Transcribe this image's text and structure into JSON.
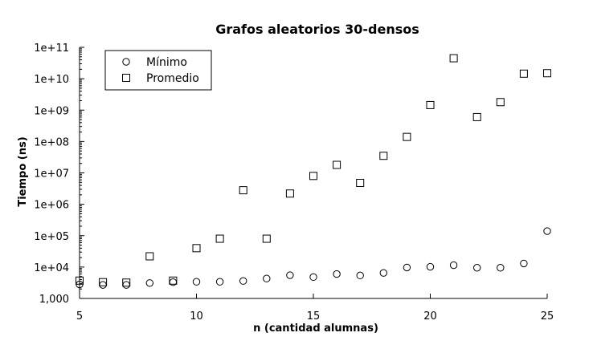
{
  "chart_data": {
    "type": "scatter",
    "title": "Grafos aleatorios 30-densos",
    "xlabel": "n (cantidad alumnas)",
    "ylabel": "Tiempo (ns)",
    "xlim": [
      5,
      25
    ],
    "ylim": [
      1000,
      100000000000
    ],
    "yscale": "log",
    "grid": false,
    "legend_position": "top-left",
    "x_ticks": [
      5,
      10,
      15,
      20,
      25
    ],
    "x_tick_labels": [
      "5",
      "10",
      "15",
      "20",
      "25"
    ],
    "y_ticks": [
      1000,
      10000,
      100000,
      1000000,
      10000000,
      100000000,
      1000000000,
      10000000000,
      100000000000
    ],
    "y_tick_labels": [
      "1,000",
      "1e+04",
      "1e+05",
      "1e+06",
      "1e+07",
      "1e+08",
      "1e+09",
      "1e+10",
      "1e+11"
    ],
    "series": [
      {
        "name": "Mínimo",
        "marker": "circle",
        "color": "#000000",
        "x": [
          5,
          6,
          7,
          8,
          9,
          10,
          11,
          12,
          13,
          14,
          15,
          16,
          17,
          18,
          19,
          20,
          21,
          22,
          23,
          24,
          25
        ],
        "y": [
          2800,
          2700,
          2700,
          3100,
          3300,
          3400,
          3400,
          3600,
          4300,
          5500,
          4800,
          6000,
          5400,
          6500,
          9700,
          10200,
          11500,
          9500,
          9500,
          13000,
          140000
        ]
      },
      {
        "name": "Promedio",
        "marker": "square",
        "color": "#000000",
        "x": [
          5,
          6,
          7,
          8,
          9,
          10,
          11,
          12,
          13,
          14,
          15,
          16,
          17,
          18,
          19,
          20,
          21,
          22,
          23,
          24,
          25
        ],
        "y": [
          3700,
          3300,
          3200,
          22000,
          3700,
          40000,
          80000,
          2800000,
          80000,
          2200000,
          8000000,
          18000000,
          4800000,
          35000000,
          140000000,
          1450000000,
          45000000000,
          600000000,
          1800000000,
          14500000000,
          15000000000
        ]
      }
    ]
  }
}
